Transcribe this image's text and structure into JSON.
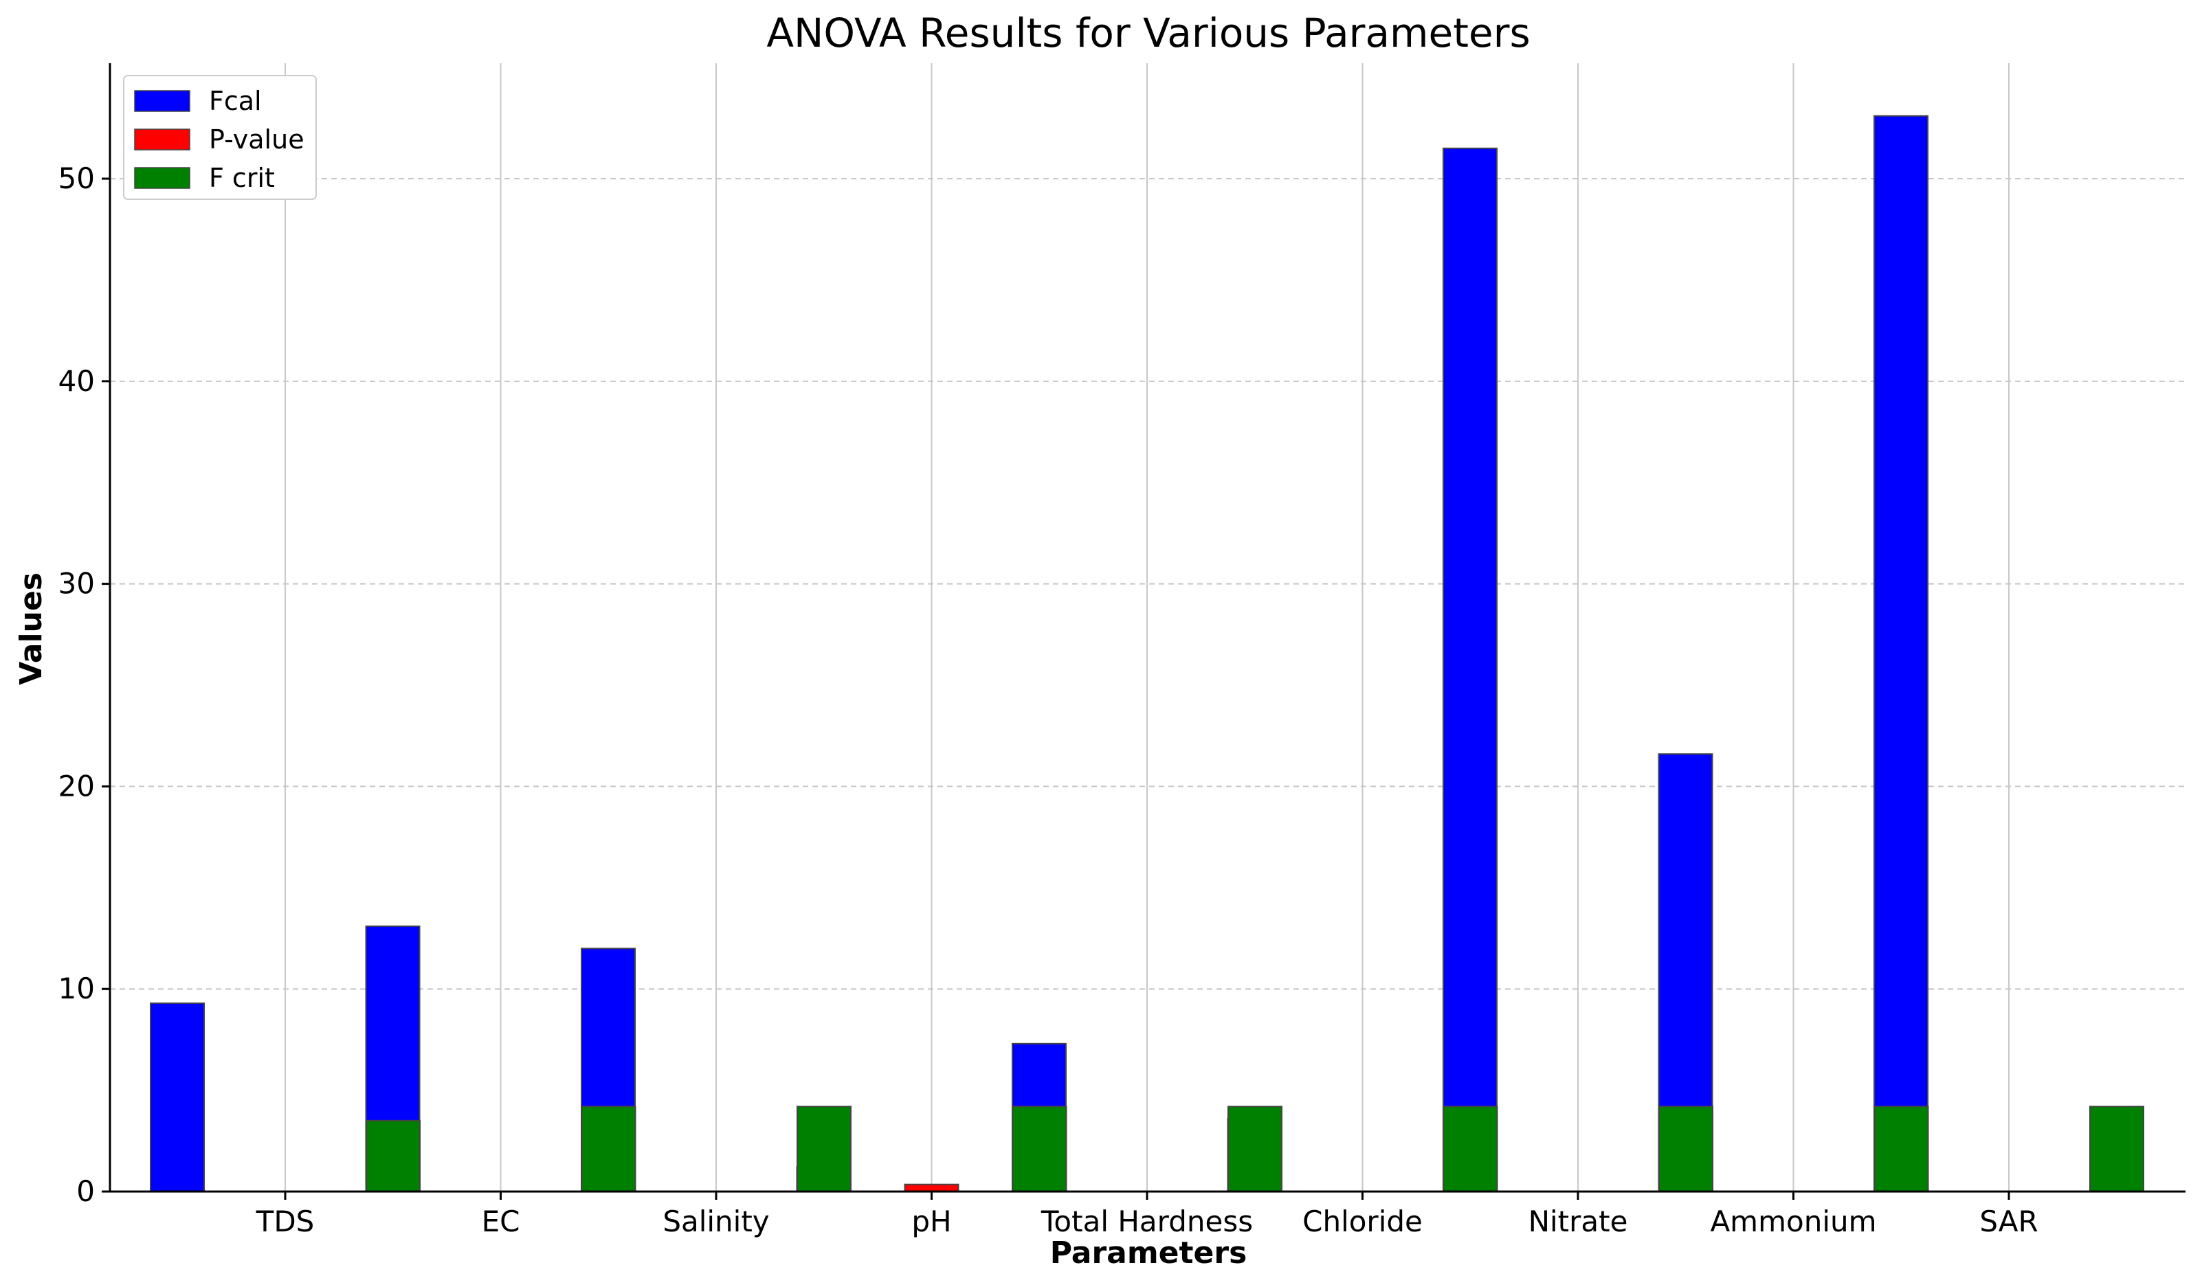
{
  "chart_data": {
    "type": "bar",
    "title": "ANOVA Results for Various Parameters",
    "xlabel": "Parameters",
    "ylabel": "Values",
    "categories": [
      "TDS",
      "EC",
      "Salinity",
      "pH",
      "Total Hardness",
      "Chloride",
      "Nitrate",
      "Ammonium",
      "SAR"
    ],
    "series": [
      {
        "name": "Fcal",
        "color": "#0000ff",
        "values": [
          9.3,
          13.1,
          12.0,
          1.2,
          7.3,
          3.6,
          51.5,
          21.6,
          53.1
        ]
      },
      {
        "name": "P-value",
        "color": "#ff0000",
        "values": [
          0.0,
          0.0,
          0.0,
          0.35,
          0.0,
          0.01,
          0.0,
          0.0,
          0.0
        ]
      },
      {
        "name": "F crit",
        "color": "#008000",
        "values": [
          3.5,
          4.2,
          4.2,
          4.2,
          4.2,
          4.2,
          4.2,
          4.2,
          4.2
        ]
      }
    ],
    "ylim": [
      0,
      55.7
    ],
    "yticks": [
      0,
      10,
      20,
      30,
      40,
      50
    ],
    "grid": true,
    "legend_position": "top-left"
  }
}
